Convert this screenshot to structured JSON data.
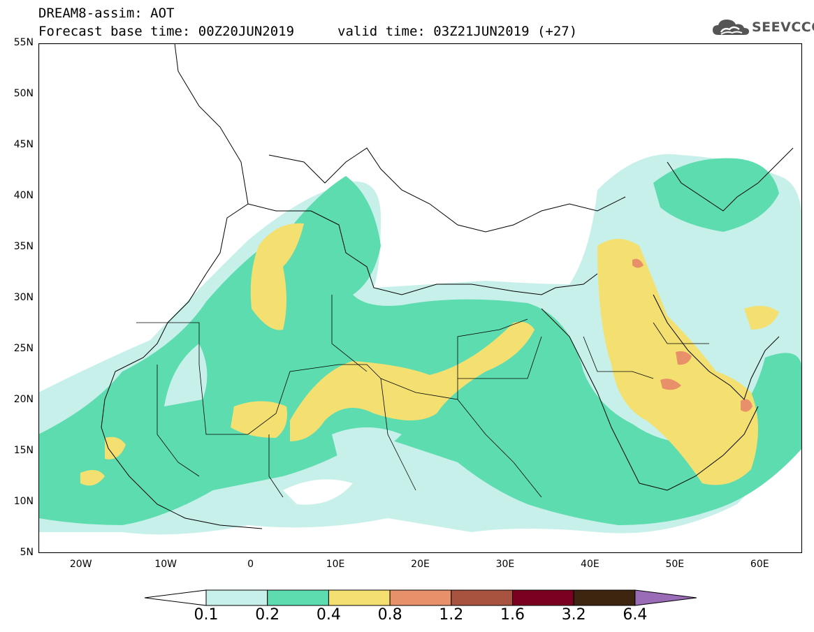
{
  "header": {
    "title": "DREAM8-assim: AOT",
    "base_time": "Forecast base time: 00Z20JUN2019",
    "valid_time": "valid time: 03Z21JUN2019 (+27)"
  },
  "logo": {
    "text": "SEEVCCC",
    "icon": "cloud-icon"
  },
  "map": {
    "latitude_labels": [
      "55N",
      "50N",
      "45N",
      "40N",
      "35N",
      "30N",
      "25N",
      "20N",
      "15N",
      "10N",
      "5N"
    ],
    "longitude_labels": [
      "20W",
      "10W",
      "0",
      "10E",
      "20E",
      "30E",
      "40E",
      "50E",
      "60E"
    ],
    "lat_range": [
      5,
      55
    ],
    "lon_range": [
      -25,
      65
    ]
  },
  "colorbar": {
    "labels": [
      "0.1",
      "0.2",
      "0.4",
      "0.8",
      "1.2",
      "1.6",
      "3.2",
      "6.4"
    ],
    "colors": [
      "#ffffff",
      "#c8f0ea",
      "#5ddcb0",
      "#f3e070",
      "#e8906a",
      "#a8533f",
      "#7a0020",
      "#3d2510",
      "#9a6cb8"
    ]
  },
  "colors": {
    "level_01": "#c8f0ea",
    "level_02": "#5ddcb0",
    "level_04": "#f3e070",
    "level_08": "#e8906a"
  }
}
